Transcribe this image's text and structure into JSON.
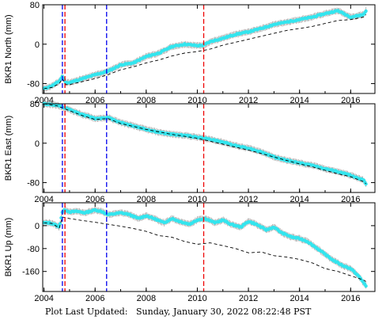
{
  "footer": {
    "label": "Plot Last Updated:",
    "timestamp": "Sunday, January 30, 2022 08:22:48 PST"
  },
  "colors": {
    "observed": "#33e5ee",
    "error_bar": "#a8a8a8",
    "model": "#000000",
    "blue_event": "#0000ee",
    "red_event": "#ee0000"
  },
  "chart_data": [
    {
      "type": "scatter",
      "ylabel": "BKR1 North (mm)",
      "xlim": [
        2003.95,
        2016.95
      ],
      "ylim": [
        -100,
        80
      ],
      "yticks": [
        -80,
        0,
        80
      ],
      "xticks": [
        2004,
        2006,
        2008,
        2010,
        2012,
        2014,
        2016
      ],
      "vlines": [
        {
          "x": 2004.72,
          "color": "blue"
        },
        {
          "x": 2004.82,
          "color": "red"
        },
        {
          "x": 2006.45,
          "color": "blue"
        },
        {
          "x": 2010.25,
          "color": "red"
        }
      ],
      "series": [
        {
          "kind": "observed",
          "x": [
            2004.0,
            2004.3,
            2004.6,
            2004.72,
            2004.85,
            2005.0,
            2005.5,
            2006.0,
            2006.5,
            2007.0,
            2007.5,
            2008.0,
            2008.5,
            2009.0,
            2009.5,
            2010.0,
            2010.25,
            2010.5,
            2011.0,
            2011.5,
            2012.0,
            2012.5,
            2013.0,
            2013.5,
            2014.0,
            2014.5,
            2015.0,
            2015.5,
            2016.0,
            2016.5,
            2016.6
          ],
          "y": [
            -90,
            -85,
            -75,
            -65,
            -78,
            -78,
            -70,
            -62,
            -55,
            -42,
            -38,
            -25,
            -18,
            -5,
            0,
            -3,
            -2,
            5,
            12,
            20,
            25,
            32,
            40,
            45,
            50,
            55,
            62,
            68,
            55,
            60,
            68
          ]
        },
        {
          "kind": "model",
          "x": [
            2004.0,
            2004.3,
            2004.6,
            2004.72,
            2004.85,
            2005.0,
            2005.5,
            2006.0,
            2006.5,
            2007.0,
            2007.5,
            2008.0,
            2008.5,
            2009.0,
            2009.5,
            2010.0,
            2010.5,
            2011.0,
            2011.5,
            2012.0,
            2012.5,
            2013.0,
            2013.5,
            2014.0,
            2014.5,
            2015.0,
            2015.5,
            2016.0,
            2016.5,
            2016.6
          ],
          "y": [
            -90,
            -88,
            -80,
            -70,
            -82,
            -82,
            -76,
            -70,
            -62,
            -52,
            -46,
            -38,
            -32,
            -24,
            -18,
            -15,
            -10,
            -2,
            4,
            10,
            16,
            22,
            28,
            32,
            36,
            42,
            48,
            50,
            55,
            60
          ]
        }
      ]
    },
    {
      "type": "scatter",
      "ylabel": "BKR1 East (mm)",
      "xlim": [
        2003.95,
        2016.95
      ],
      "ylim": [
        -100,
        80
      ],
      "yticks": [
        -80,
        0,
        80
      ],
      "xticks": [
        2004,
        2006,
        2008,
        2010,
        2012,
        2014,
        2016
      ],
      "vlines": [
        {
          "x": 2004.72,
          "color": "blue"
        },
        {
          "x": 2004.82,
          "color": "red"
        },
        {
          "x": 2006.45,
          "color": "blue"
        },
        {
          "x": 2010.25,
          "color": "red"
        }
      ],
      "series": [
        {
          "kind": "observed",
          "x": [
            2004.0,
            2004.5,
            2005.0,
            2005.5,
            2006.0,
            2006.5,
            2007.0,
            2007.5,
            2008.0,
            2008.5,
            2009.0,
            2009.5,
            2010.0,
            2010.5,
            2011.0,
            2011.5,
            2012.0,
            2012.5,
            2013.0,
            2013.5,
            2014.0,
            2014.5,
            2015.0,
            2015.5,
            2016.0,
            2016.5,
            2016.6
          ],
          "y": [
            80,
            77,
            68,
            58,
            50,
            52,
            42,
            35,
            28,
            22,
            18,
            16,
            12,
            8,
            2,
            -5,
            -10,
            -18,
            -28,
            -35,
            -40,
            -45,
            -52,
            -58,
            -65,
            -75,
            -82
          ]
        },
        {
          "kind": "model",
          "x": [
            2004.0,
            2004.5,
            2005.0,
            2005.5,
            2006.0,
            2006.5,
            2007.0,
            2007.5,
            2008.0,
            2008.5,
            2009.0,
            2009.5,
            2010.0,
            2010.5,
            2011.0,
            2011.5,
            2012.0,
            2012.5,
            2013.0,
            2013.5,
            2014.0,
            2014.5,
            2015.0,
            2015.5,
            2016.0,
            2016.5,
            2016.6
          ],
          "y": [
            80,
            76,
            66,
            56,
            48,
            50,
            40,
            34,
            28,
            23,
            18,
            14,
            10,
            4,
            -2,
            -8,
            -14,
            -21,
            -28,
            -35,
            -42,
            -48,
            -55,
            -62,
            -68,
            -78,
            -82
          ]
        }
      ]
    },
    {
      "type": "scatter",
      "ylabel": "BKR1 Up (mm)",
      "xlim": [
        2003.95,
        2016.95
      ],
      "ylim": [
        -230,
        80
      ],
      "yticks": [
        -160,
        -80,
        0
      ],
      "xticks": [
        2004,
        2006,
        2008,
        2010,
        2012,
        2014,
        2016
      ],
      "vlines": [
        {
          "x": 2004.72,
          "color": "blue"
        },
        {
          "x": 2004.82,
          "color": "red"
        },
        {
          "x": 2006.45,
          "color": "blue"
        },
        {
          "x": 2010.25,
          "color": "red"
        }
      ],
      "series": [
        {
          "kind": "observed",
          "x": [
            2004.0,
            2004.2,
            2004.4,
            2004.6,
            2004.72,
            2004.85,
            2005.0,
            2005.3,
            2005.6,
            2006.0,
            2006.3,
            2006.5,
            2007.0,
            2007.3,
            2007.7,
            2008.0,
            2008.3,
            2008.7,
            2009.0,
            2009.3,
            2009.7,
            2010.0,
            2010.3,
            2010.7,
            2011.0,
            2011.3,
            2011.7,
            2012.0,
            2012.3,
            2012.7,
            2013.0,
            2013.3,
            2013.7,
            2014.0,
            2014.3,
            2014.7,
            2015.0,
            2015.3,
            2015.7,
            2016.0,
            2016.3,
            2016.6
          ],
          "y": [
            10,
            10,
            5,
            -5,
            50,
            55,
            48,
            50,
            45,
            55,
            48,
            38,
            45,
            40,
            25,
            35,
            25,
            10,
            25,
            15,
            5,
            20,
            25,
            10,
            20,
            5,
            -5,
            15,
            5,
            -15,
            -5,
            -25,
            -40,
            -45,
            -55,
            -80,
            -100,
            -120,
            -140,
            -150,
            -175,
            -210
          ]
        },
        {
          "kind": "model",
          "x": [
            2004.0,
            2004.3,
            2004.6,
            2004.72,
            2004.85,
            2005.0,
            2005.5,
            2006.0,
            2006.5,
            2007.0,
            2007.5,
            2008.0,
            2008.5,
            2009.0,
            2009.5,
            2010.0,
            2010.5,
            2011.0,
            2011.5,
            2012.0,
            2012.5,
            2013.0,
            2013.5,
            2014.0,
            2014.5,
            2015.0,
            2015.5,
            2016.0,
            2016.5,
            2016.6
          ],
          "y": [
            10,
            8,
            -8,
            30,
            28,
            25,
            18,
            12,
            5,
            -2,
            -10,
            -20,
            -35,
            -40,
            -55,
            -65,
            -60,
            -70,
            -80,
            -95,
            -92,
            -105,
            -110,
            -118,
            -130,
            -150,
            -160,
            -175,
            -190,
            -195
          ]
        }
      ]
    }
  ]
}
